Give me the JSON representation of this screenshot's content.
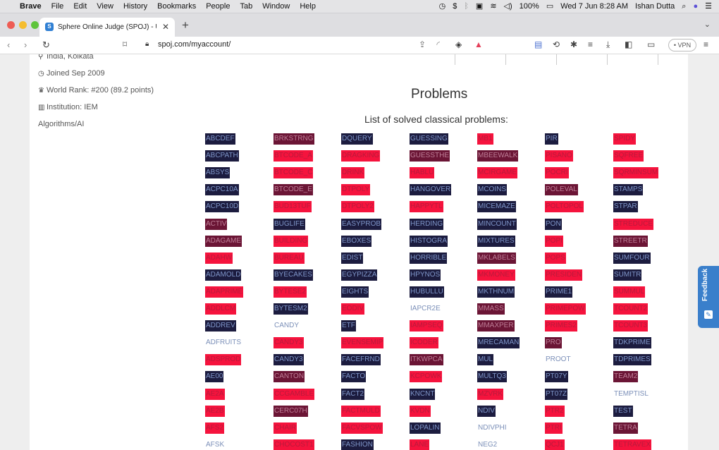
{
  "menubar": {
    "apple": "",
    "app": "Brave",
    "items": [
      "File",
      "Edit",
      "View",
      "History",
      "Bookmarks",
      "People",
      "Tab",
      "Window",
      "Help"
    ],
    "battery": "100%",
    "datetime": "Wed 7 Jun  8:28 AM",
    "user": "Ishan Dutta"
  },
  "tab": {
    "title": "Sphere Online Judge (SPOJ) - U",
    "close": "✕",
    "new": "+"
  },
  "toolbar": {
    "url": "spoj.com/myaccount/",
    "vpn": "• VPN"
  },
  "profile": {
    "location": "India, Kolkata",
    "joined": "Joined Sep 2009",
    "rank": "World Rank: #200 (89.2 points)",
    "institution": "Institution: IEM",
    "interest": "Algorithms/AI"
  },
  "problems": {
    "heading": "Problems",
    "subheading": "List of solved classical problems:"
  },
  "colors": {
    "dark": "#1c1c3f",
    "red": "#f5133d",
    "maroon": "#6b1535",
    "feedback": "#3a7fcb"
  },
  "grid": [
    [
      [
        "ABCDEF",
        "dark"
      ],
      [
        "BRKSTRNG",
        "maroon"
      ],
      [
        "DQUERY",
        "dark"
      ],
      [
        "GUESSING",
        "dark"
      ],
      [
        "MB1",
        "red"
      ],
      [
        "PIR",
        "dark"
      ],
      [
        "SPIDY",
        "red"
      ]
    ],
    [
      [
        "ABCPATH",
        "dark"
      ],
      [
        "BTCODE_A",
        "red"
      ],
      [
        "DRAGKING",
        "red"
      ],
      [
        "GUESSTHE",
        "maroon"
      ],
      [
        "MBEEWALK",
        "maroon"
      ],
      [
        "PISANO",
        "red"
      ],
      [
        "SQFREE",
        "red"
      ]
    ],
    [
      [
        "ABSYS",
        "dark"
      ],
      [
        "BTCODE_C",
        "red"
      ],
      [
        "DRINK",
        "red"
      ],
      [
        "HABLU",
        "red"
      ],
      [
        "MCIRGAME",
        "red"
      ],
      [
        "POCRI",
        "red"
      ],
      [
        "SQRMINSUM",
        "red"
      ]
    ],
    [
      [
        "ACPC10A",
        "dark"
      ],
      [
        "BTCODE_E",
        "maroon"
      ],
      [
        "DTPOLY",
        "red"
      ],
      [
        "HANGOVER",
        "dark"
      ],
      [
        "MCOINS",
        "dark"
      ],
      [
        "POLEVAL",
        "maroon"
      ],
      [
        "STAMPS",
        "dark"
      ]
    ],
    [
      [
        "ACPC10D",
        "dark"
      ],
      [
        "BUD13TUF",
        "red"
      ],
      [
        "DTPOLY2",
        "red"
      ],
      [
        "HAPPYTL",
        "red"
      ],
      [
        "MICEMAZE",
        "dark"
      ],
      [
        "POLTOPOL",
        "red"
      ],
      [
        "STPAR",
        "dark"
      ]
    ],
    [
      [
        "ACTIV",
        "maroon"
      ],
      [
        "BUGLIFE",
        "dark"
      ],
      [
        "EASYPROB",
        "dark"
      ],
      [
        "HERDING",
        "dark"
      ],
      [
        "MINCOUNT",
        "dark"
      ],
      [
        "PON",
        "dark"
      ],
      [
        "STREDUCE",
        "red"
      ]
    ],
    [
      [
        "ADAGAME",
        "maroon"
      ],
      [
        "BUILDING",
        "red"
      ],
      [
        "EBOXES",
        "dark"
      ],
      [
        "HISTOGRA",
        "dark"
      ],
      [
        "MIXTURES",
        "dark"
      ],
      [
        "POPI",
        "red"
      ],
      [
        "STREETR",
        "maroon"
      ]
    ],
    [
      [
        "ADAHW",
        "red"
      ],
      [
        "BUREAU",
        "red"
      ],
      [
        "EDIST",
        "dark"
      ],
      [
        "HORRIBLE",
        "dark"
      ],
      [
        "MKLABELS",
        "maroon"
      ],
      [
        "POPS",
        "red"
      ],
      [
        "SUMFOUR",
        "dark"
      ]
    ],
    [
      [
        "ADAMOLD",
        "dark"
      ],
      [
        "BYECAKES",
        "dark"
      ],
      [
        "EGYPIZZA",
        "dark"
      ],
      [
        "HPYNOS",
        "dark"
      ],
      [
        "MKMONEY",
        "red"
      ],
      [
        "PRESIDEN",
        "red"
      ],
      [
        "SUMITR",
        "dark"
      ]
    ],
    [
      [
        "ADAPRIME",
        "red"
      ],
      [
        "BYTESE2",
        "red"
      ],
      [
        "EIGHTS",
        "dark"
      ],
      [
        "HUBULLU",
        "dark"
      ],
      [
        "MKTHNUM",
        "dark"
      ],
      [
        "PRIME1",
        "dark"
      ],
      [
        "SUMMUL",
        "red"
      ]
    ],
    [
      [
        "ADDLCM",
        "red"
      ],
      [
        "BYTESM2",
        "dark"
      ],
      [
        "EODIV",
        "red"
      ],
      [
        "IAPCR2E",
        "plain"
      ],
      [
        "MMASS",
        "maroon"
      ],
      [
        "PRIMEPOW",
        "red"
      ],
      [
        "TCOUNT2",
        "red"
      ]
    ],
    [
      [
        "ADDREV",
        "dark"
      ],
      [
        "CANDY",
        "plain"
      ],
      [
        "ETF",
        "dark"
      ],
      [
        "IAMPSEQ",
        "red"
      ],
      [
        "MMAXPER",
        "maroon"
      ],
      [
        "PRIMES2",
        "red"
      ],
      [
        "TCOUNT3",
        "red"
      ]
    ],
    [
      [
        "ADFRUITS",
        "plain"
      ],
      [
        "CANDY3",
        "red"
      ],
      [
        "EVENSEMIP",
        "red"
      ],
      [
        "ICODER",
        "red"
      ],
      [
        "MRECAMAN",
        "dark"
      ],
      [
        "PRO",
        "maroon"
      ],
      [
        "TDKPRIME",
        "dark"
      ]
    ],
    [
      [
        "ADSPROD",
        "red"
      ],
      [
        "CANDY3",
        "dark"
      ],
      [
        "FACEFRND",
        "dark"
      ],
      [
        "ITKWPCA",
        "maroon"
      ],
      [
        "MUL",
        "dark"
      ],
      [
        "PROOT",
        "plain"
      ],
      [
        "TDPRIMES",
        "dark"
      ]
    ],
    [
      [
        "AE00",
        "dark"
      ],
      [
        "CANTON",
        "maroon"
      ],
      [
        "FACTO",
        "dark"
      ],
      [
        "KCPOWK",
        "red"
      ],
      [
        "MULTQ3",
        "dark"
      ],
      [
        "PT07Y",
        "dark"
      ],
      [
        "TEAM2",
        "maroon"
      ]
    ],
    [
      [
        "AE2A",
        "red"
      ],
      [
        "CCGAMBLE",
        "red"
      ],
      [
        "FACT2",
        "dark"
      ],
      [
        "KNCNT",
        "dark"
      ],
      [
        "MZVRK",
        "red"
      ],
      [
        "PT07Z",
        "dark"
      ],
      [
        "TEMPTISL",
        "plain"
      ]
    ],
    [
      [
        "AE2B",
        "red"
      ],
      [
        "CERC07H",
        "maroon"
      ],
      [
        "FACTMULD",
        "red"
      ],
      [
        "KVDN",
        "red"
      ],
      [
        "NDIV",
        "dark"
      ],
      [
        "PTR2",
        "red"
      ],
      [
        "TEST",
        "dark"
      ]
    ],
    [
      [
        "AFS2",
        "red"
      ],
      [
        "CHAIR",
        "red"
      ],
      [
        "FACVSPOW",
        "red"
      ],
      [
        "LOPALIN",
        "dark"
      ],
      [
        "NDIVPHI",
        "plain"
      ],
      [
        "PTRI",
        "red"
      ],
      [
        "TETRA",
        "maroon"
      ]
    ],
    [
      [
        "AFSK",
        "plain"
      ],
      [
        "CHOCOST1",
        "red"
      ],
      [
        "FASHION",
        "dark"
      ],
      [
        "LANE",
        "red"
      ],
      [
        "NEG2",
        "plain"
      ],
      [
        "QCJ1",
        "red"
      ],
      [
        "TETRAVEX",
        "red"
      ]
    ]
  ],
  "feedback": {
    "label": "Feedback"
  }
}
